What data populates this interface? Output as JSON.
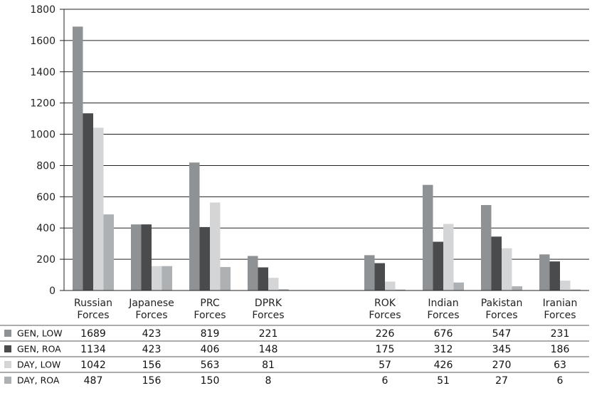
{
  "chart_data": {
    "type": "bar",
    "categories": [
      [
        "Russian",
        "Forces"
      ],
      [
        "Japanese",
        "Forces"
      ],
      [
        "PRC",
        "Forces"
      ],
      [
        "DPRK",
        "Forces"
      ],
      null,
      [
        "ROK",
        "Forces"
      ],
      [
        "Indian",
        "Forces"
      ],
      [
        "Pakistan",
        "Forces"
      ],
      [
        "Iranian",
        "Forces"
      ]
    ],
    "series": [
      {
        "name": "GEN, LOW",
        "color": "#8e9294",
        "values": [
          1689,
          423,
          819,
          221,
          null,
          226,
          676,
          547,
          231
        ]
      },
      {
        "name": "GEN, ROA",
        "color": "#4a4b4d",
        "values": [
          1134,
          423,
          406,
          148,
          null,
          175,
          312,
          345,
          186
        ]
      },
      {
        "name": "DAY, LOW",
        "color": "#d4d5d6",
        "values": [
          1042,
          156,
          563,
          81,
          null,
          57,
          426,
          270,
          63
        ]
      },
      {
        "name": "DAY, ROA",
        "color": "#adb1b3",
        "values": [
          487,
          156,
          150,
          8,
          null,
          6,
          51,
          27,
          6
        ]
      }
    ],
    "ylim": [
      0,
      1800
    ],
    "yticks": [
      0,
      200,
      400,
      600,
      800,
      1000,
      1200,
      1400,
      1600,
      1800
    ],
    "grid": true,
    "legend": "data-table"
  }
}
